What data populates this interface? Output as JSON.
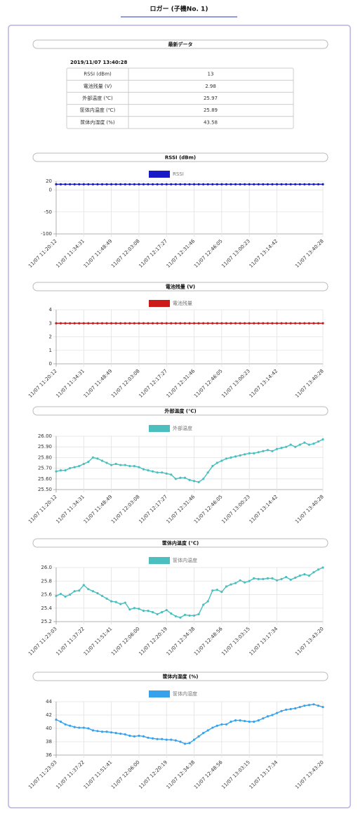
{
  "header": {
    "title": "ロガー (子機No. 1)"
  },
  "latest": {
    "title": "最新データ",
    "timestamp": "2019/11/07 13:40:28",
    "rows": [
      [
        "RSSI (dBm)",
        13
      ],
      [
        "電池残量 (V)",
        2.98
      ],
      [
        "外部温度 (℃)",
        25.97
      ],
      [
        "筐体内温度 (℃)",
        25.89
      ],
      [
        "筐体内湿度 (%)",
        43.58
      ]
    ]
  },
  "chart_data": [
    {
      "type": "line",
      "title": "RSSI (dBm)",
      "grid": true,
      "categories": [
        "11/07 11:20:12",
        null,
        null,
        null,
        null,
        null,
        "11/07 11:34:31",
        null,
        null,
        null,
        null,
        null,
        "11/07 11:48:49",
        null,
        null,
        null,
        null,
        null,
        "11/07 12:03:08",
        null,
        null,
        null,
        null,
        null,
        "11/07 12:17:27",
        null,
        null,
        null,
        null,
        null,
        "11/07 12:31:46",
        null,
        null,
        null,
        null,
        null,
        "11/07 12:46:05",
        null,
        null,
        null,
        null,
        null,
        "11/07 13:00:23",
        null,
        null,
        null,
        null,
        null,
        "11/07 13:14:42",
        null,
        null,
        null,
        null,
        null,
        null,
        null,
        null,
        null,
        "11/07 13:40:28"
      ],
      "ylim": [
        -100,
        20
      ],
      "yticks": [
        -100,
        -50,
        0,
        20
      ],
      "series": [
        {
          "name": "RSSI",
          "color": "#1a1ac8",
          "values": [
            13,
            13,
            13,
            13,
            13,
            13,
            13,
            13,
            13,
            13,
            13,
            13,
            13,
            13,
            13,
            13,
            13,
            13,
            13,
            13,
            13,
            13,
            13,
            13,
            13,
            13,
            13,
            13,
            13,
            13,
            13,
            13,
            13,
            13,
            13,
            13,
            13,
            13,
            13,
            13,
            13,
            13,
            13,
            13,
            13,
            13,
            13,
            13,
            13,
            13,
            13,
            13,
            13,
            13,
            13,
            13,
            13,
            13,
            13
          ]
        }
      ]
    },
    {
      "type": "line",
      "title": "電池残量 (V)",
      "grid": true,
      "categories": [
        "11/07 11:20:12",
        null,
        null,
        null,
        null,
        null,
        "11/07 11:34:31",
        null,
        null,
        null,
        null,
        null,
        "11/07 11:48:49",
        null,
        null,
        null,
        null,
        null,
        "11/07 12:03:08",
        null,
        null,
        null,
        null,
        null,
        "11/07 12:17:27",
        null,
        null,
        null,
        null,
        null,
        "11/07 12:31:46",
        null,
        null,
        null,
        null,
        null,
        "11/07 12:46:05",
        null,
        null,
        null,
        null,
        null,
        "11/07 13:00:23",
        null,
        null,
        null,
        null,
        null,
        "11/07 13:14:42",
        null,
        null,
        null,
        null,
        null,
        null,
        null,
        null,
        null,
        "11/07 13:40:28"
      ],
      "ylim": [
        0,
        4
      ],
      "yticks": [
        0,
        1,
        2,
        3,
        4
      ],
      "series": [
        {
          "name": "電池残量",
          "color": "#cc1a1a",
          "values": [
            3,
            3,
            3,
            3,
            3,
            3,
            3,
            3,
            3,
            3,
            3,
            3,
            3,
            3,
            3,
            3,
            3,
            3,
            3,
            3,
            3,
            3,
            3,
            3,
            3,
            3,
            3,
            3,
            3,
            3,
            3,
            3,
            3,
            3,
            3,
            3,
            3,
            3,
            3,
            3,
            3,
            3,
            3,
            3,
            3,
            3,
            3,
            3,
            3,
            3,
            3,
            3,
            3,
            3,
            3,
            3,
            3,
            3,
            3
          ]
        }
      ]
    },
    {
      "type": "line",
      "title": "外部温度 (℃)",
      "grid": true,
      "categories": [
        "11/07 11:20:12",
        null,
        null,
        null,
        null,
        null,
        "11/07 11:34:31",
        null,
        null,
        null,
        null,
        null,
        "11/07 11:48:49",
        null,
        null,
        null,
        null,
        null,
        "11/07 12:03:08",
        null,
        null,
        null,
        null,
        null,
        "11/07 12:17:27",
        null,
        null,
        null,
        null,
        null,
        "11/07 12:31:46",
        null,
        null,
        null,
        null,
        null,
        "11/07 12:46:05",
        null,
        null,
        null,
        null,
        null,
        "11/07 13:00:23",
        null,
        null,
        null,
        null,
        null,
        "11/07 13:14:42",
        null,
        null,
        null,
        null,
        null,
        null,
        null,
        null,
        null,
        "11/07 13:40:28"
      ],
      "ylim": [
        25.5,
        26
      ],
      "yticks": [
        {
          "value": 25.5,
          "label": "25.50"
        },
        {
          "value": 25.6,
          "label": "25.60"
        },
        {
          "value": 25.7,
          "label": "25.70"
        },
        {
          "value": 25.8,
          "label": "25.80"
        },
        {
          "value": 25.9,
          "label": "25.90"
        },
        {
          "value": 26,
          "label": "26.00"
        }
      ],
      "series": [
        {
          "name": "外部温度",
          "color": "#4bbfbf",
          "values": [
            25.67,
            25.68,
            25.68,
            25.7,
            25.71,
            25.72,
            25.74,
            25.76,
            25.8,
            25.79,
            25.77,
            25.75,
            25.73,
            25.74,
            25.73,
            25.73,
            25.72,
            25.72,
            25.71,
            25.69,
            25.68,
            25.67,
            25.66,
            25.66,
            25.65,
            25.64,
            25.6,
            25.61,
            25.61,
            25.59,
            25.58,
            25.57,
            25.6,
            25.66,
            25.72,
            25.75,
            25.77,
            25.79,
            25.8,
            25.81,
            25.82,
            25.83,
            25.84,
            25.84,
            25.85,
            25.86,
            25.87,
            25.86,
            25.88,
            25.89,
            25.9,
            25.92,
            25.9,
            25.92,
            25.94,
            25.92,
            25.93,
            25.95,
            25.97
          ]
        }
      ]
    },
    {
      "type": "line",
      "title": "筐体内温度 (℃)",
      "grid": true,
      "categories": [
        "11/07 11:23:03",
        null,
        null,
        null,
        null,
        null,
        "11/07 11:37:22",
        null,
        null,
        null,
        null,
        null,
        "11/07 11:51:41",
        null,
        null,
        null,
        null,
        null,
        "11/07 12:06:00",
        null,
        null,
        null,
        null,
        null,
        "11/07 12:20:19",
        null,
        null,
        null,
        null,
        null,
        "11/07 12:34:38",
        null,
        null,
        null,
        null,
        null,
        "11/07 12:48:56",
        null,
        null,
        null,
        null,
        null,
        "11/07 13:03:15",
        null,
        null,
        null,
        null,
        null,
        "11/07 13:17:34",
        null,
        null,
        null,
        null,
        null,
        null,
        null,
        null,
        null,
        "11/07 13:43:20"
      ],
      "ylim": [
        25.2,
        26
      ],
      "yticks": [
        25.2,
        25.4,
        25.6,
        25.8,
        {
          "value": 26,
          "label": "26.0"
        }
      ],
      "series": [
        {
          "name": "筐体内温度",
          "color": "#4bbfbf",
          "values": [
            25.58,
            25.61,
            25.57,
            25.6,
            25.65,
            25.66,
            25.74,
            25.68,
            25.65,
            25.62,
            25.58,
            25.54,
            25.5,
            25.49,
            25.46,
            25.48,
            25.38,
            25.4,
            25.39,
            25.36,
            25.36,
            25.34,
            25.31,
            25.34,
            25.37,
            25.32,
            25.28,
            25.26,
            25.3,
            25.29,
            25.29,
            25.31,
            25.45,
            25.5,
            25.66,
            25.67,
            25.64,
            25.72,
            25.75,
            25.77,
            25.81,
            25.78,
            25.8,
            25.84,
            25.83,
            25.83,
            25.84,
            25.84,
            25.81,
            25.83,
            25.86,
            25.82,
            25.85,
            25.88,
            25.9,
            25.88,
            25.93,
            25.97,
            26.0
          ]
        }
      ]
    },
    {
      "type": "line",
      "title": "筐体内湿度 (%)",
      "grid": true,
      "categories": [
        "11/07 11:23:03",
        null,
        null,
        null,
        null,
        null,
        "11/07 11:37:22",
        null,
        null,
        null,
        null,
        null,
        "11/07 11:51:41",
        null,
        null,
        null,
        null,
        null,
        "11/07 12:06:00",
        null,
        null,
        null,
        null,
        null,
        "11/07 12:20:19",
        null,
        null,
        null,
        null,
        null,
        "11/07 12:34:38",
        null,
        null,
        null,
        null,
        null,
        "11/07 12:48:56",
        null,
        null,
        null,
        null,
        null,
        "11/07 13:03:15",
        null,
        null,
        null,
        null,
        null,
        "11/07 13:17:34",
        null,
        null,
        null,
        null,
        null,
        null,
        null,
        null,
        null,
        "11/07 13:43:20"
      ],
      "ylim": [
        36,
        44
      ],
      "yticks": [
        36,
        38,
        40,
        42,
        44
      ],
      "series": [
        {
          "name": "筐体内湿度",
          "color": "#36a2eb",
          "values": [
            41.3,
            41.0,
            40.6,
            40.4,
            40.2,
            40.1,
            40.1,
            40.0,
            39.7,
            39.6,
            39.5,
            39.5,
            39.4,
            39.3,
            39.2,
            39.1,
            38.9,
            38.8,
            38.9,
            38.8,
            38.6,
            38.5,
            38.4,
            38.4,
            38.3,
            38.3,
            38.2,
            38.0,
            37.7,
            37.8,
            38.3,
            38.8,
            39.3,
            39.7,
            40.1,
            40.4,
            40.6,
            40.6,
            41.0,
            41.2,
            41.2,
            41.1,
            41.0,
            41.0,
            41.2,
            41.5,
            41.8,
            42.0,
            42.3,
            42.6,
            42.8,
            42.9,
            43.0,
            43.2,
            43.4,
            43.5,
            43.6,
            43.4,
            43.2
          ]
        }
      ]
    }
  ]
}
